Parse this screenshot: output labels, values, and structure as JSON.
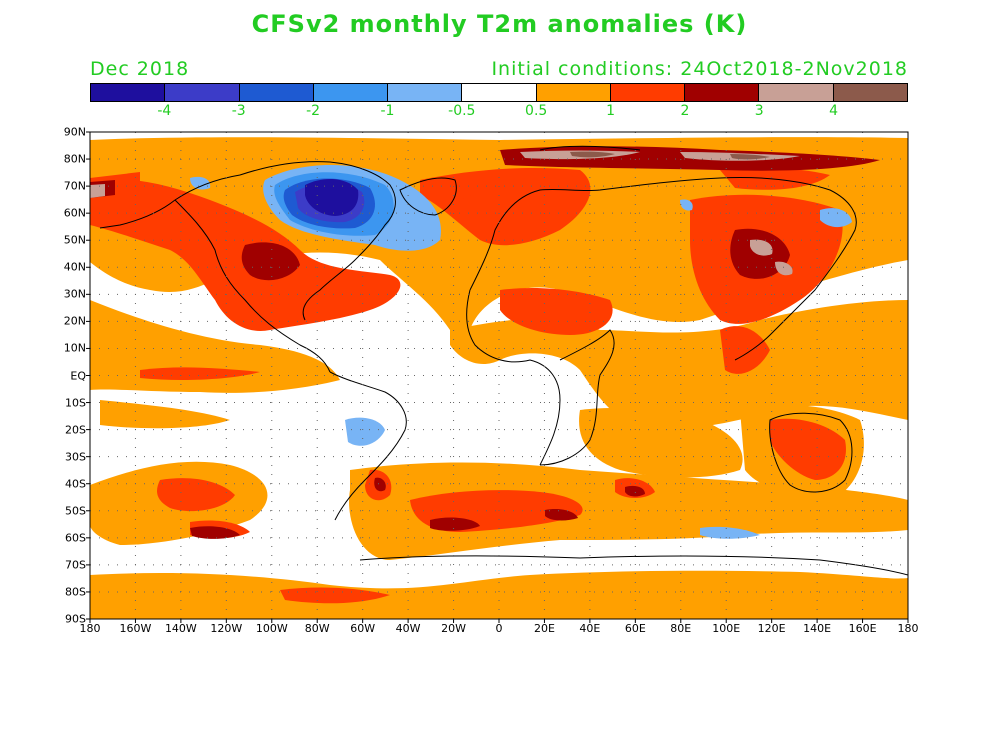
{
  "title": "CFSv2 monthly T2m anomalies (K)",
  "valid_month": "Dec 2018",
  "initial_conditions": "Initial conditions: 24Oct2018-2Nov2018",
  "colorbar": {
    "colors": [
      "#1e0f9e",
      "#3c3cc8",
      "#1e5ad2",
      "#3c96f0",
      "#78b4f5",
      "#ffffff",
      "#ffa000",
      "#ff3c00",
      "#a00000",
      "#c8a096",
      "#8c5a4b"
    ],
    "labels": [
      "-4",
      "-3",
      "-2",
      "-1",
      "-0.5",
      "0.5",
      "1",
      "2",
      "3",
      "4"
    ]
  },
  "lat_labels": [
    "90N",
    "80N",
    "70N",
    "60N",
    "50N",
    "40N",
    "30N",
    "20N",
    "10N",
    "EQ",
    "10S",
    "20S",
    "30S",
    "40S",
    "50S",
    "60S",
    "70S",
    "80S",
    "90S"
  ],
  "lon_labels": [
    "180",
    "160W",
    "140W",
    "120W",
    "100W",
    "80W",
    "60W",
    "40W",
    "20W",
    "0",
    "20E",
    "40E",
    "60E",
    "80E",
    "100E",
    "120E",
    "140E",
    "160E",
    "180"
  ],
  "colors": {
    "text": "#22cc22",
    "land_outline": "#000000",
    "grid": "#666666"
  }
}
